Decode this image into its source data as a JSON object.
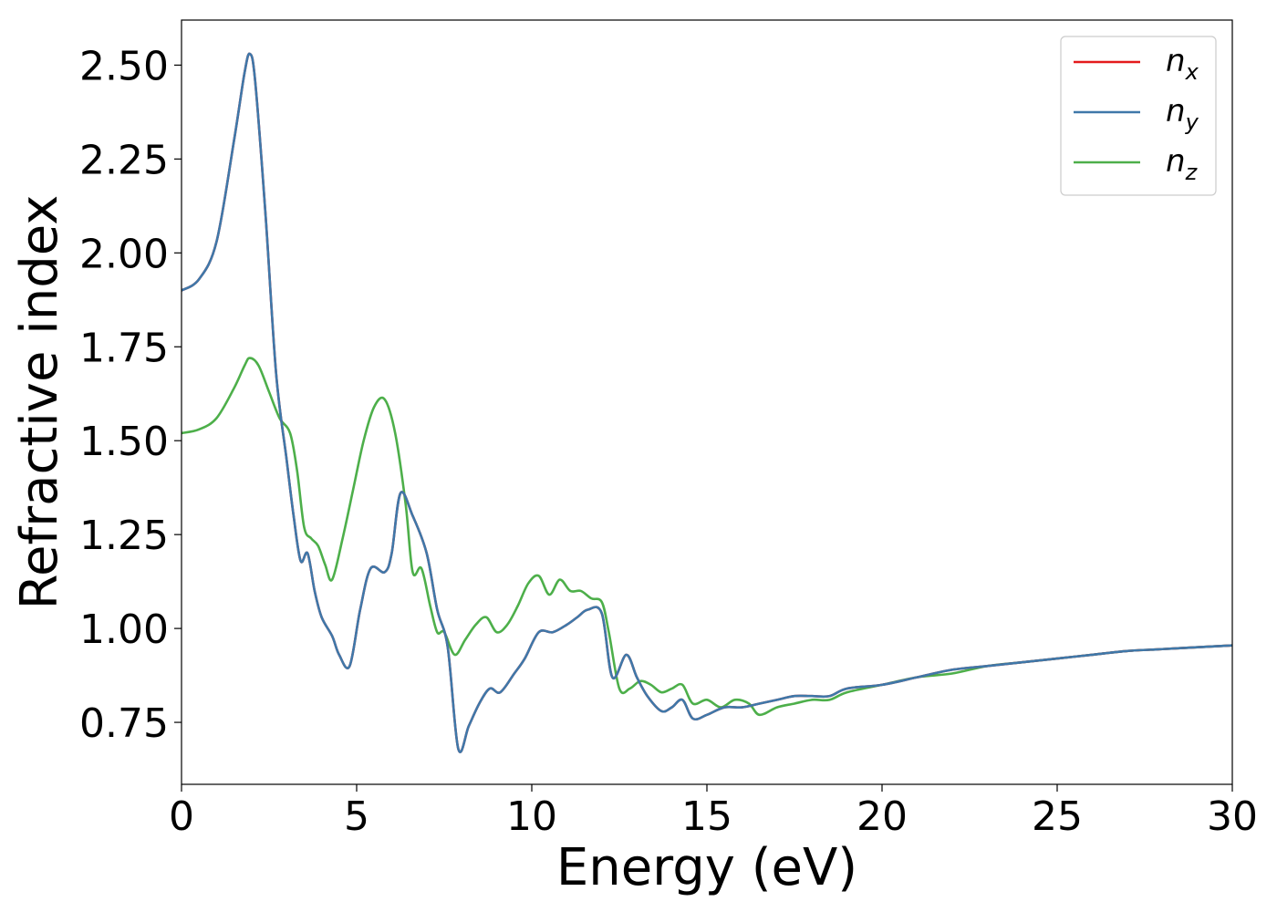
{
  "chart_data": {
    "type": "line",
    "xlabel": "Energy (eV)",
    "ylabel": "Refractive index",
    "xlim": [
      0,
      30
    ],
    "ylim": [
      0.585,
      2.62
    ],
    "xticks": [
      0,
      5,
      10,
      15,
      20,
      25,
      30
    ],
    "xtick_labels": [
      "0",
      "5",
      "10",
      "15",
      "20",
      "25",
      "30"
    ],
    "yticks": [
      0.75,
      1.0,
      1.25,
      1.5,
      1.75,
      2.0,
      2.25,
      2.5
    ],
    "ytick_labels": [
      "0.75",
      "1.00",
      "1.25",
      "1.50",
      "1.75",
      "2.00",
      "2.25",
      "2.50"
    ],
    "grid": false,
    "legend_position": "top-right",
    "series": [
      {
        "name": "n_x",
        "label_main": "n",
        "label_sub": "x",
        "color": "#e41a1c",
        "x": [
          0,
          0.5,
          1.0,
          1.5,
          1.8,
          1.95,
          2.1,
          2.4,
          2.7,
          3.0,
          3.2,
          3.4,
          3.6,
          3.8,
          4.0,
          4.3,
          4.5,
          4.8,
          5.1,
          5.4,
          5.8,
          6.0,
          6.25,
          6.6,
          7.0,
          7.3,
          7.6,
          7.9,
          8.2,
          8.5,
          8.8,
          9.1,
          9.5,
          9.8,
          10.2,
          10.6,
          11.0,
          11.3,
          11.6,
          12.0,
          12.3,
          12.7,
          13.0,
          13.3,
          13.7,
          14.0,
          14.3,
          14.6,
          15.0,
          15.5,
          16.0,
          16.5,
          17.0,
          17.5,
          18.0,
          18.5,
          19.0,
          20.0,
          21.0,
          22.0,
          23.0,
          24.0,
          25.0,
          26.0,
          27.0,
          28.0,
          29.0,
          30.0
        ],
        "values": [
          1.9,
          1.93,
          2.03,
          2.3,
          2.48,
          2.53,
          2.46,
          2.1,
          1.68,
          1.45,
          1.3,
          1.18,
          1.2,
          1.1,
          1.03,
          0.98,
          0.93,
          0.9,
          1.05,
          1.16,
          1.15,
          1.2,
          1.36,
          1.3,
          1.2,
          1.05,
          0.95,
          0.68,
          0.74,
          0.8,
          0.84,
          0.83,
          0.88,
          0.92,
          0.99,
          0.99,
          1.01,
          1.03,
          1.05,
          1.04,
          0.87,
          0.93,
          0.87,
          0.82,
          0.78,
          0.79,
          0.81,
          0.76,
          0.77,
          0.79,
          0.79,
          0.8,
          0.81,
          0.82,
          0.82,
          0.82,
          0.84,
          0.85,
          0.87,
          0.89,
          0.9,
          0.91,
          0.92,
          0.93,
          0.94,
          0.945,
          0.95,
          0.955
        ]
      },
      {
        "name": "n_y",
        "label_main": "n",
        "label_sub": "y",
        "color": "#3f78a9",
        "x": [
          0,
          0.5,
          1.0,
          1.5,
          1.8,
          1.95,
          2.1,
          2.4,
          2.7,
          3.0,
          3.2,
          3.4,
          3.6,
          3.8,
          4.0,
          4.3,
          4.5,
          4.8,
          5.1,
          5.4,
          5.8,
          6.0,
          6.25,
          6.6,
          7.0,
          7.3,
          7.6,
          7.9,
          8.2,
          8.5,
          8.8,
          9.1,
          9.5,
          9.8,
          10.2,
          10.6,
          11.0,
          11.3,
          11.6,
          12.0,
          12.3,
          12.7,
          13.0,
          13.3,
          13.7,
          14.0,
          14.3,
          14.6,
          15.0,
          15.5,
          16.0,
          16.5,
          17.0,
          17.5,
          18.0,
          18.5,
          19.0,
          20.0,
          21.0,
          22.0,
          23.0,
          24.0,
          25.0,
          26.0,
          27.0,
          28.0,
          29.0,
          30.0
        ],
        "values": [
          1.9,
          1.93,
          2.03,
          2.3,
          2.48,
          2.53,
          2.46,
          2.1,
          1.68,
          1.45,
          1.3,
          1.18,
          1.2,
          1.1,
          1.03,
          0.98,
          0.93,
          0.9,
          1.05,
          1.16,
          1.15,
          1.2,
          1.36,
          1.3,
          1.2,
          1.05,
          0.95,
          0.68,
          0.74,
          0.8,
          0.84,
          0.83,
          0.88,
          0.92,
          0.99,
          0.99,
          1.01,
          1.03,
          1.05,
          1.04,
          0.87,
          0.93,
          0.87,
          0.82,
          0.78,
          0.79,
          0.81,
          0.76,
          0.77,
          0.79,
          0.79,
          0.8,
          0.81,
          0.82,
          0.82,
          0.82,
          0.84,
          0.85,
          0.87,
          0.89,
          0.9,
          0.91,
          0.92,
          0.93,
          0.94,
          0.945,
          0.95,
          0.955
        ]
      },
      {
        "name": "n_z",
        "label_main": "n",
        "label_sub": "z",
        "color": "#4daf4a",
        "x": [
          0,
          0.5,
          1.0,
          1.5,
          1.8,
          1.95,
          2.2,
          2.5,
          2.8,
          3.1,
          3.3,
          3.5,
          3.7,
          3.9,
          4.1,
          4.3,
          4.6,
          4.9,
          5.2,
          5.5,
          5.8,
          6.1,
          6.4,
          6.6,
          6.85,
          7.1,
          7.3,
          7.5,
          7.8,
          8.1,
          8.4,
          8.7,
          9.0,
          9.3,
          9.6,
          9.9,
          10.2,
          10.5,
          10.8,
          11.1,
          11.4,
          11.7,
          12.0,
          12.2,
          12.5,
          12.8,
          13.1,
          13.4,
          13.7,
          14.0,
          14.3,
          14.6,
          15.0,
          15.4,
          15.8,
          16.2,
          16.5,
          17.0,
          17.5,
          18.0,
          18.5,
          19.0,
          20.0,
          21.0,
          22.0,
          23.0,
          24.0,
          25.0,
          26.0,
          27.0,
          28.0,
          29.0,
          30.0
        ],
        "values": [
          1.52,
          1.53,
          1.56,
          1.64,
          1.7,
          1.72,
          1.7,
          1.63,
          1.56,
          1.52,
          1.42,
          1.27,
          1.24,
          1.22,
          1.17,
          1.13,
          1.24,
          1.37,
          1.5,
          1.59,
          1.61,
          1.52,
          1.33,
          1.15,
          1.16,
          1.06,
          0.99,
          0.99,
          0.93,
          0.97,
          1.01,
          1.03,
          0.99,
          1.01,
          1.06,
          1.12,
          1.14,
          1.09,
          1.13,
          1.1,
          1.1,
          1.08,
          1.07,
          0.99,
          0.84,
          0.84,
          0.86,
          0.85,
          0.83,
          0.84,
          0.85,
          0.8,
          0.81,
          0.79,
          0.81,
          0.8,
          0.77,
          0.79,
          0.8,
          0.81,
          0.81,
          0.83,
          0.85,
          0.87,
          0.88,
          0.9,
          0.91,
          0.92,
          0.93,
          0.94,
          0.945,
          0.95,
          0.955
        ]
      }
    ]
  }
}
